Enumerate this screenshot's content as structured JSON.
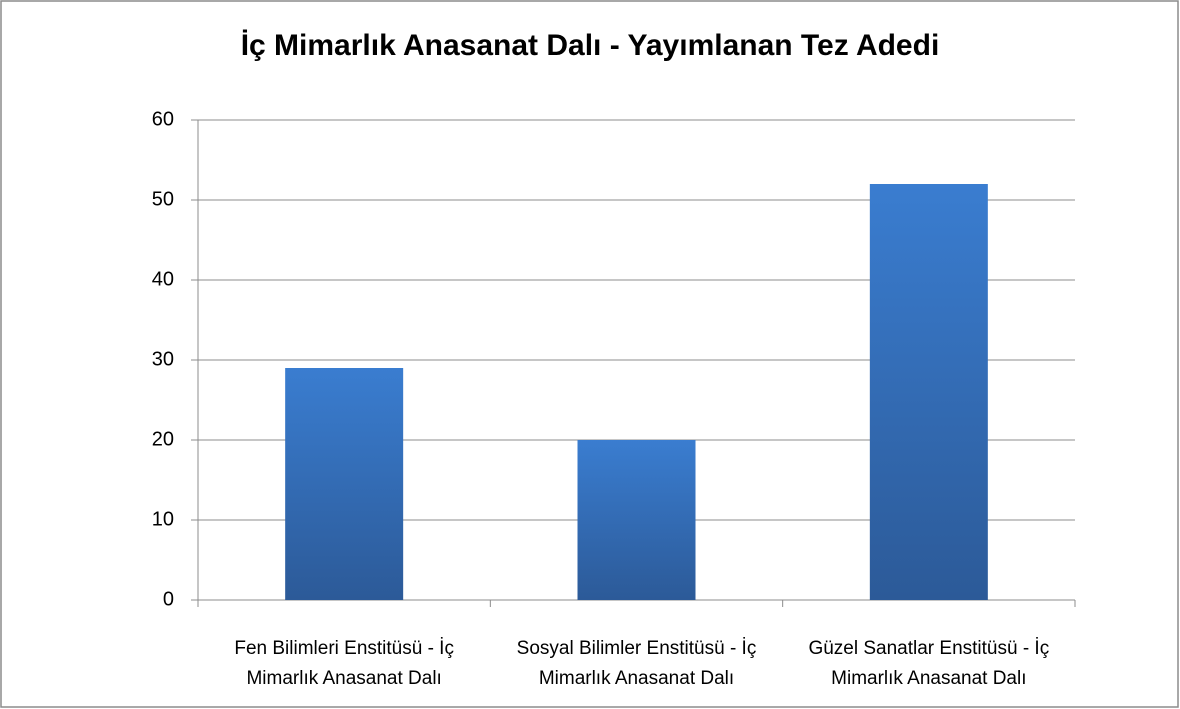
{
  "chart_data": {
    "type": "bar",
    "title": "İç Mimarlık Anasanat Dalı - Yayımlanan Tez Adedi",
    "categories": [
      "Fen Bilimleri Enstitüsü - İç Mimarlık Anasanat Dalı",
      "Sosyal Bilimler Enstitüsü - İç Mimarlık Anasanat Dalı",
      "Güzel Sanatlar Enstitüsü - İç Mimarlık Anasanat Dalı"
    ],
    "values": [
      29,
      20,
      52
    ],
    "color": "#3a7dd0",
    "ylim": [
      0,
      60
    ],
    "yticks": [
      0,
      10,
      20,
      30,
      40,
      50,
      60
    ],
    "grid": true
  }
}
